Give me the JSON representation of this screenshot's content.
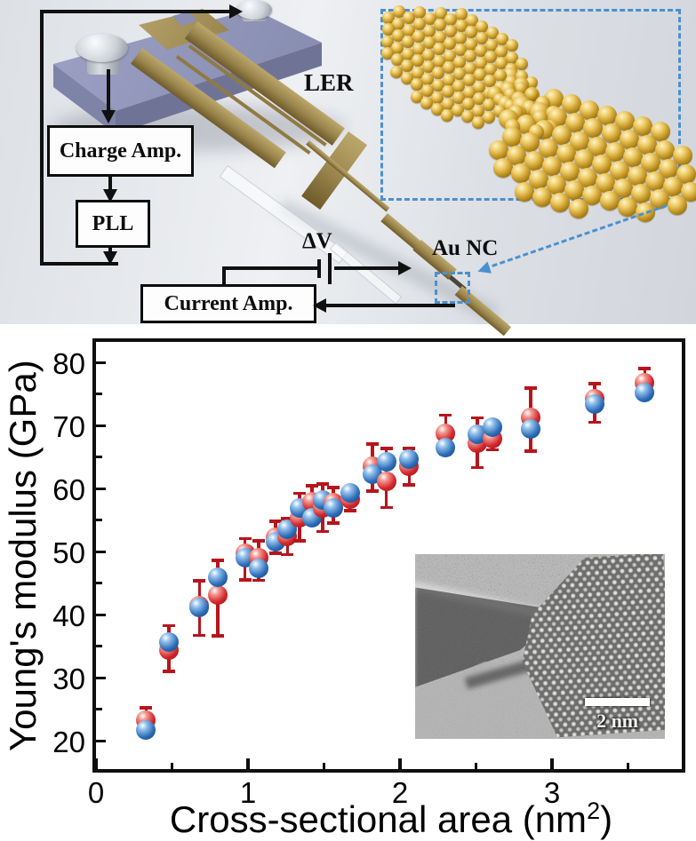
{
  "schematic": {
    "boxes": {
      "charge_amp": "Charge Amp.",
      "pll": "PLL",
      "current_amp": "Current Amp."
    },
    "labels": {
      "ler": "LER",
      "delta_v": "ΔV",
      "au_nc": "Au NC"
    }
  },
  "chart_data": {
    "type": "scatter",
    "title": "",
    "xlabel_main": "Cross-sectional area (nm",
    "xlabel_sup": "2",
    "xlabel_end": ")",
    "ylabel": "Young's modulus (GPa)",
    "xlim": [
      0,
      3.88
    ],
    "ylim": [
      15,
      83
    ],
    "xticks": [
      0,
      1,
      2,
      3
    ],
    "xticks_minor": [
      0.5,
      1.5,
      2.5,
      3.5
    ],
    "yticks": [
      20,
      30,
      40,
      50,
      60,
      70,
      80
    ],
    "yticks_minor": [
      25,
      35,
      45,
      55,
      65,
      75
    ],
    "grid": false,
    "legend": false,
    "series": [
      {
        "name": "red",
        "color": "#cf2127",
        "x": [
          0.33,
          0.48,
          0.68,
          0.8,
          0.98,
          1.07,
          1.18,
          1.26,
          1.34,
          1.42,
          1.49,
          1.56,
          1.67,
          1.82,
          1.91,
          2.06,
          2.3,
          2.51,
          2.61,
          2.86,
          3.28,
          3.61
        ],
        "y": [
          23.3,
          34.4,
          41.4,
          43.1,
          49.7,
          49.0,
          52.3,
          52.4,
          55.4,
          57.9,
          57.0,
          57.8,
          58.3,
          63.6,
          61.1,
          63.5,
          68.8,
          67.2,
          68.0,
          71.3,
          74.3,
          76.8
        ],
        "err_up": [
          2.0,
          3.9,
          4.0,
          5.6,
          2.4,
          2.8,
          2.6,
          2.9,
          3.9,
          2.6,
          3.8,
          2.4,
          1.8,
          3.5,
          5.3,
          2.9,
          2.9,
          4.1,
          2.1,
          4.7,
          2.4,
          2.3
        ],
        "err_down": [
          2.0,
          3.4,
          4.7,
          6.5,
          4.2,
          3.6,
          2.6,
          2.9,
          3.7,
          3.4,
          3.8,
          3.3,
          1.8,
          4.0,
          4.1,
          2.9,
          3.4,
          3.9,
          1.9,
          5.4,
          3.8,
          1.9
        ]
      },
      {
        "name": "blue",
        "color": "#2e6db8",
        "x": [
          0.33,
          0.48,
          0.68,
          0.8,
          0.98,
          1.07,
          1.18,
          1.26,
          1.34,
          1.42,
          1.49,
          1.56,
          1.67,
          1.82,
          1.91,
          2.06,
          2.3,
          2.51,
          2.61,
          2.86,
          3.28,
          3.61
        ],
        "y": [
          21.7,
          35.7,
          41.1,
          45.9,
          49.0,
          47.4,
          51.6,
          53.6,
          57.0,
          55.4,
          58.2,
          56.9,
          59.3,
          62.3,
          64.3,
          64.7,
          66.5,
          68.6,
          69.8,
          69.5,
          73.4,
          75.3
        ]
      }
    ],
    "inset_tem": {
      "scalebar_label": "2 nm"
    }
  },
  "colors": {
    "red_marker": "#cf2127",
    "blue_marker": "#2e6db8",
    "error_bar": "#b5161c",
    "dashed_blue": "#4a90d0",
    "gold": "#a98f52",
    "slab_purple": "#9397bc"
  }
}
